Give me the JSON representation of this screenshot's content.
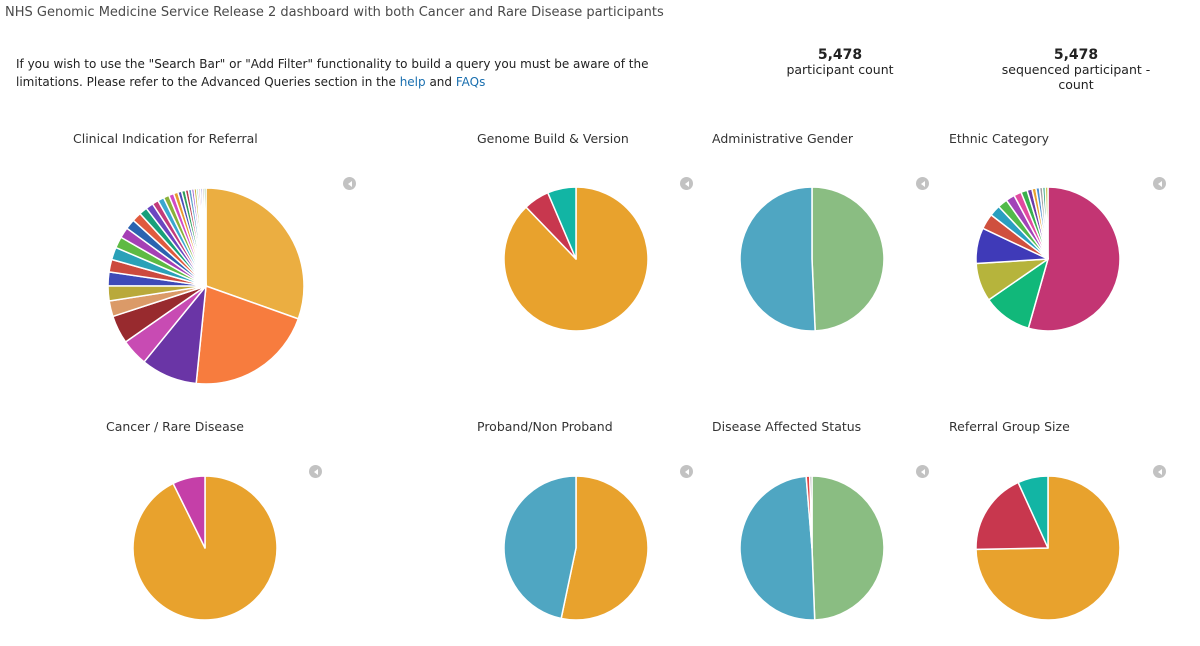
{
  "header": {
    "title": "NHS Genomic Medicine Service Release 2 dashboard with both Cancer and Rare Disease participants",
    "notice_text": "If you wish to use the \"Search Bar\" or \"Add Filter\" functionality to build a query you must be aware of the limitations. Please refer to the Advanced Queries section in the ",
    "help_link": "help",
    "and_text": " and ",
    "faqs_link": "FAQs"
  },
  "stats": [
    {
      "value": "5,478",
      "label": "participant count"
    },
    {
      "value": "5,478",
      "label": "sequenced participant - count"
    }
  ],
  "chart_data": [
    {
      "type": "pie",
      "title": "Clinical Indication for Referral",
      "slices": [
        {
          "value": 29.5,
          "color": "#ebae41"
        },
        {
          "value": 20.5,
          "color": "#f77c3e"
        },
        {
          "value": 9,
          "color": "#6a35a6"
        },
        {
          "value": 4.3,
          "color": "#c84bb3"
        },
        {
          "value": 4.5,
          "color": "#982a2e"
        },
        {
          "value": 2.5,
          "color": "#db9a68"
        },
        {
          "value": 2.4,
          "color": "#b9a93a"
        },
        {
          "value": 2.2,
          "color": "#3e4ab8"
        },
        {
          "value": 2.0,
          "color": "#cc4a3e"
        },
        {
          "value": 2.0,
          "color": "#2aa1b8"
        },
        {
          "value": 1.8,
          "color": "#5eba43"
        },
        {
          "value": 1.7,
          "color": "#a53fb5"
        },
        {
          "value": 1.6,
          "color": "#2b63b0"
        },
        {
          "value": 1.5,
          "color": "#e05a3e"
        },
        {
          "value": 1.3,
          "color": "#18a07a"
        },
        {
          "value": 1.2,
          "color": "#6b46c0"
        },
        {
          "value": 1.0,
          "color": "#c23b7a"
        },
        {
          "value": 1.0,
          "color": "#3aa7d0"
        },
        {
          "value": 0.9,
          "color": "#8ab13a"
        },
        {
          "value": 0.8,
          "color": "#d24ac4"
        },
        {
          "value": 0.7,
          "color": "#e69a2e"
        },
        {
          "value": 0.6,
          "color": "#4c4cb8"
        },
        {
          "value": 0.6,
          "color": "#2e9e5a"
        },
        {
          "value": 0.5,
          "color": "#b5384e"
        },
        {
          "value": 0.5,
          "color": "#5aa0c8"
        },
        {
          "value": 0.4,
          "color": "#9c5bd0"
        },
        {
          "value": 0.4,
          "color": "#c9b23a"
        },
        {
          "value": 0.3,
          "color": "#3bbfa0"
        },
        {
          "value": 0.3,
          "color": "#d96f9a"
        },
        {
          "value": 0.3,
          "color": "#7a7ad0"
        },
        {
          "value": 0.3,
          "color": "#a0a0a0"
        },
        {
          "value": 0.3,
          "color": "#5ab04a"
        }
      ]
    },
    {
      "type": "pie",
      "title": "Genome Build & Version",
      "slices": [
        {
          "value": 87.8,
          "color": "#e8a22d"
        },
        {
          "value": 5.8,
          "color": "#c8374e"
        },
        {
          "value": 6.4,
          "color": "#12b5a4"
        }
      ]
    },
    {
      "type": "pie",
      "title": "Administrative Gender",
      "slices": [
        {
          "value": 49.3,
          "color": "#8abd82"
        },
        {
          "value": 50.7,
          "color": "#4fa6c2"
        }
      ]
    },
    {
      "type": "pie",
      "title": "Ethnic Category",
      "slices": [
        {
          "value": 54.4,
          "color": "#c33573"
        },
        {
          "value": 11.0,
          "color": "#11b87a"
        },
        {
          "value": 8.6,
          "color": "#b6b43c"
        },
        {
          "value": 8.0,
          "color": "#3f3ab8"
        },
        {
          "value": 3.5,
          "color": "#cf503e"
        },
        {
          "value": 2.5,
          "color": "#299fc0"
        },
        {
          "value": 2.2,
          "color": "#52ba4a"
        },
        {
          "value": 2.0,
          "color": "#a143b8"
        },
        {
          "value": 1.7,
          "color": "#e14aa0"
        },
        {
          "value": 1.4,
          "color": "#39b04e"
        },
        {
          "value": 1.1,
          "color": "#6b3aa8"
        },
        {
          "value": 0.9,
          "color": "#e8a22d"
        },
        {
          "value": 0.8,
          "color": "#4a8fd0"
        },
        {
          "value": 0.7,
          "color": "#a0a0a0"
        },
        {
          "value": 0.6,
          "color": "#2aa07a"
        },
        {
          "value": 0.6,
          "color": "#c0c040"
        }
      ]
    },
    {
      "type": "pie",
      "title": "Cancer / Rare Disease",
      "slices": [
        {
          "value": 92.7,
          "color": "#e8a22d"
        },
        {
          "value": 7.3,
          "color": "#c53fa8"
        }
      ]
    },
    {
      "type": "pie",
      "title": "Proband/Non Proband",
      "slices": [
        {
          "value": 53.3,
          "color": "#e8a22d"
        },
        {
          "value": 46.7,
          "color": "#4fa6c2"
        }
      ]
    },
    {
      "type": "pie",
      "title": "Disease Affected Status",
      "slices": [
        {
          "value": 49.4,
          "color": "#8abd82"
        },
        {
          "value": 49.3,
          "color": "#4fa6c2"
        },
        {
          "value": 0.8,
          "color": "#e34545"
        },
        {
          "value": 0.5,
          "color": "#a0a0a0"
        }
      ]
    },
    {
      "type": "pie",
      "title": "Referral Group Size",
      "slices": [
        {
          "value": 74.7,
          "color": "#e8a22d"
        },
        {
          "value": 18.5,
          "color": "#c8374e"
        },
        {
          "value": 6.8,
          "color": "#12b5a4"
        }
      ]
    }
  ]
}
